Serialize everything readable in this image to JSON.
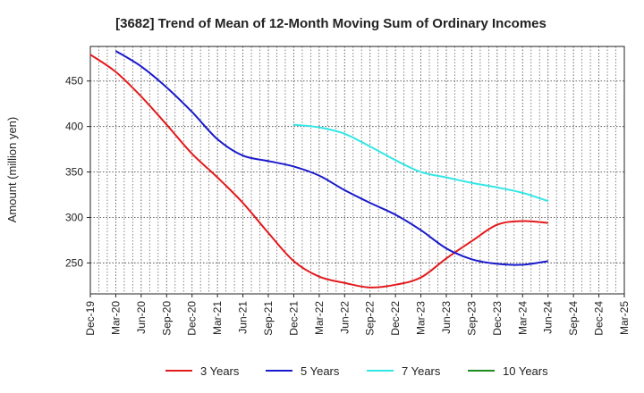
{
  "chart_data": {
    "type": "line",
    "title": "[3682]  Trend of Mean of 12-Month Moving Sum of Ordinary Incomes",
    "xlabel": "",
    "ylabel": "Amount (million yen)",
    "ylim": [
      216,
      488
    ],
    "yticks": [
      250,
      300,
      350,
      400,
      450
    ],
    "x_tick_labels": [
      "Dec-19",
      "Mar-20",
      "Jun-20",
      "Sep-20",
      "Dec-20",
      "Mar-21",
      "Jun-21",
      "Sep-21",
      "Dec-21",
      "Mar-22",
      "Jun-22",
      "Sep-22",
      "Dec-22",
      "Mar-23",
      "Jun-23",
      "Sep-23",
      "Dec-23",
      "Mar-24",
      "Jun-24",
      "Sep-24",
      "Dec-24",
      "Mar-25"
    ],
    "grid": true,
    "legend_position": "bottom",
    "series": [
      {
        "name": "3 Years",
        "color": "#e31a1c",
        "points": [
          [
            0,
            479
          ],
          [
            1,
            460
          ],
          [
            2,
            433
          ],
          [
            3,
            402
          ],
          [
            4,
            370
          ],
          [
            5,
            344
          ],
          [
            6,
            316
          ],
          [
            7,
            283
          ],
          [
            8,
            252
          ],
          [
            9,
            235
          ],
          [
            10,
            228
          ],
          [
            11,
            223
          ],
          [
            12,
            226
          ],
          [
            13,
            234
          ],
          [
            14,
            255
          ],
          [
            15,
            274
          ],
          [
            16,
            292
          ],
          [
            17,
            296
          ],
          [
            18,
            294
          ]
        ]
      },
      {
        "name": "5 Years",
        "color": "#1a1acc",
        "points": [
          [
            1,
            483
          ],
          [
            2,
            466
          ],
          [
            3,
            443
          ],
          [
            4,
            416
          ],
          [
            5,
            386
          ],
          [
            6,
            368
          ],
          [
            7,
            362
          ],
          [
            8,
            356
          ],
          [
            9,
            346
          ],
          [
            10,
            330
          ],
          [
            11,
            316
          ],
          [
            12,
            303
          ],
          [
            13,
            286
          ],
          [
            14,
            266
          ],
          [
            15,
            254
          ],
          [
            16,
            249
          ],
          [
            17,
            248
          ],
          [
            18,
            252
          ]
        ]
      },
      {
        "name": "7 Years",
        "color": "#33e6e6",
        "points": [
          [
            8,
            402
          ],
          [
            9,
            399
          ],
          [
            10,
            392
          ],
          [
            11,
            378
          ],
          [
            12,
            363
          ],
          [
            13,
            350
          ],
          [
            14,
            344
          ],
          [
            15,
            338
          ],
          [
            16,
            333
          ],
          [
            17,
            327
          ],
          [
            18,
            318
          ]
        ]
      },
      {
        "name": "10 Years",
        "color": "#1e8c1e",
        "points": []
      }
    ]
  }
}
